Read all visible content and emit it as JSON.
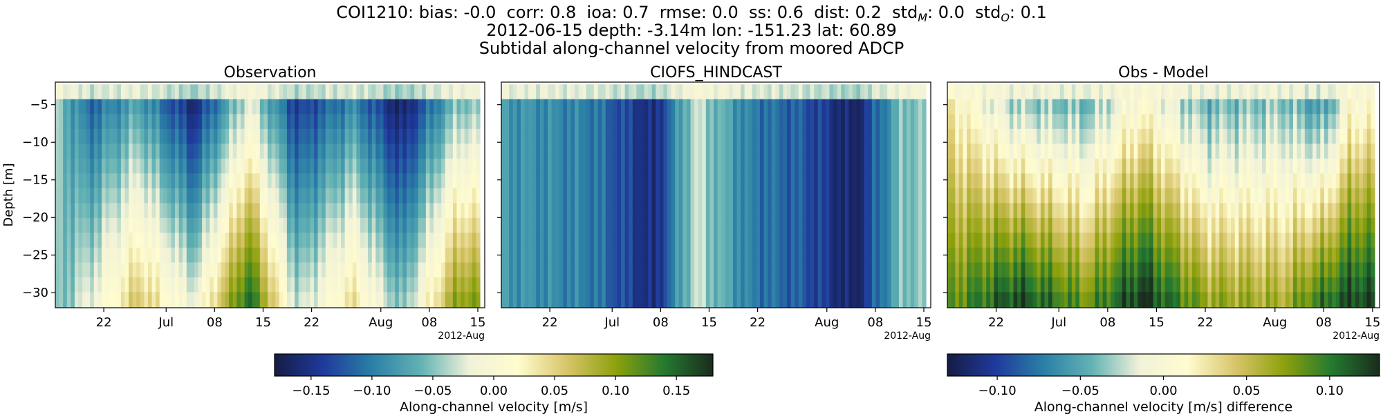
{
  "suptitle": {
    "line1_html": "COI1210: bias: -0.0 &nbsp;corr: 0.8 &nbsp;ioa: 0.7 &nbsp;rmse: 0.0 &nbsp;ss: 0.6 &nbsp;dist: 0.2 &nbsp;std<tspan font-style=\"italic\" font-size=\"16\" dy=\"5\">M</tspan><tspan dy=\"-5\">: 0.0 &nbsp;std</tspan><tspan font-style=\"italic\" font-size=\"16\" dy=\"5\">O</tspan><tspan dy=\"-5\">: 0.1</tspan>",
    "line2": "2012-06-15 depth: -3.14m lon: -151.23 lat: 60.89",
    "line3": "Subtidal along-channel velocity from moored ADCP"
  },
  "chart_data": [
    {
      "type": "heatmap",
      "title": "Observation",
      "ylabel": "Depth [m]",
      "ylim": [
        -32,
        -2
      ],
      "yticks": [
        -5,
        -10,
        -15,
        -20,
        -25,
        -30
      ],
      "xlim": [
        "2012-06-15",
        "2012-08-16"
      ],
      "xticks": [
        {
          "date": "2012-06-22",
          "label": "22"
        },
        {
          "date": "2012-07-01",
          "label": "Jul"
        },
        {
          "date": "2012-07-08",
          "label": "08"
        },
        {
          "date": "2012-07-15",
          "label": "15"
        },
        {
          "date": "2012-07-22",
          "label": "22"
        },
        {
          "date": "2012-08-01",
          "label": "Aug"
        },
        {
          "date": "2012-08-08",
          "label": "08"
        },
        {
          "date": "2012-08-15",
          "label": "15"
        }
      ],
      "offset_label": "2012-Aug",
      "colormap": "delta",
      "clim": [
        -0.18,
        0.18
      ],
      "field_m_s": [
        {
          "date": "2012-06-15",
          "surface": -0.04,
          "bottom": -0.06
        },
        {
          "date": "2012-06-20",
          "surface": -0.12,
          "bottom": -0.02
        },
        {
          "date": "2012-06-27",
          "surface": -0.08,
          "bottom": 0.06
        },
        {
          "date": "2012-07-05",
          "surface": -0.17,
          "bottom": -0.02
        },
        {
          "date": "2012-07-13",
          "surface": -0.03,
          "bottom": 0.15
        },
        {
          "date": "2012-07-20",
          "surface": -0.15,
          "bottom": -0.04
        },
        {
          "date": "2012-07-28",
          "surface": -0.1,
          "bottom": 0.04
        },
        {
          "date": "2012-08-04",
          "surface": -0.18,
          "bottom": -0.06
        },
        {
          "date": "2012-08-12",
          "surface": -0.06,
          "bottom": 0.1
        }
      ]
    },
    {
      "type": "heatmap",
      "title": "CIOFS_HINDCAST",
      "ylim": [
        -32,
        -2
      ],
      "yticks": [
        -5,
        -10,
        -15,
        -20,
        -25,
        -30
      ],
      "xlim": [
        "2012-06-15",
        "2012-08-16"
      ],
      "xticks": [
        {
          "date": "2012-06-22",
          "label": "22"
        },
        {
          "date": "2012-07-01",
          "label": "Jul"
        },
        {
          "date": "2012-07-08",
          "label": "08"
        },
        {
          "date": "2012-07-15",
          "label": "15"
        },
        {
          "date": "2012-07-22",
          "label": "22"
        },
        {
          "date": "2012-08-01",
          "label": "Aug"
        },
        {
          "date": "2012-08-08",
          "label": "08"
        },
        {
          "date": "2012-08-15",
          "label": "15"
        }
      ],
      "offset_label": "2012-Aug",
      "colormap": "delta",
      "clim": [
        -0.18,
        0.18
      ],
      "field_m_s": [
        {
          "date": "2012-06-15",
          "surface": -0.08,
          "bottom": -0.08
        },
        {
          "date": "2012-06-28",
          "surface": -0.1,
          "bottom": -0.1
        },
        {
          "date": "2012-07-07",
          "surface": -0.16,
          "bottom": -0.16
        },
        {
          "date": "2012-07-13",
          "surface": -0.03,
          "bottom": -0.03
        },
        {
          "date": "2012-07-21",
          "surface": -0.1,
          "bottom": -0.1
        },
        {
          "date": "2012-07-28",
          "surface": -0.12,
          "bottom": -0.12
        },
        {
          "date": "2012-08-05",
          "surface": -0.17,
          "bottom": -0.17
        },
        {
          "date": "2012-08-12",
          "surface": -0.05,
          "bottom": -0.05
        }
      ]
    },
    {
      "type": "heatmap",
      "title": "Obs - Model",
      "ylim": [
        -32,
        -2
      ],
      "yticks": [
        -5,
        -10,
        -15,
        -20,
        -25,
        -30
      ],
      "xlim": [
        "2012-06-15",
        "2012-08-16"
      ],
      "xticks": [
        {
          "date": "2012-06-22",
          "label": "22"
        },
        {
          "date": "2012-07-01",
          "label": "Jul"
        },
        {
          "date": "2012-07-08",
          "label": "08"
        },
        {
          "date": "2012-07-15",
          "label": "15"
        },
        {
          "date": "2012-07-22",
          "label": "22"
        },
        {
          "date": "2012-08-01",
          "label": "Aug"
        },
        {
          "date": "2012-08-08",
          "label": "08"
        },
        {
          "date": "2012-08-15",
          "label": "15"
        }
      ],
      "offset_label": "2012-Aug",
      "colormap": "delta",
      "clim": [
        -0.13,
        0.13
      ],
      "field_m_s": [
        {
          "date": "2012-06-15",
          "surface": 0.02,
          "bottom": 0.08
        },
        {
          "date": "2012-06-25",
          "surface": -0.04,
          "bottom": 0.12
        },
        {
          "date": "2012-07-05",
          "surface": -0.05,
          "bottom": 0.08
        },
        {
          "date": "2012-07-13",
          "surface": 0.0,
          "bottom": 0.13
        },
        {
          "date": "2012-07-22",
          "surface": -0.05,
          "bottom": 0.07
        },
        {
          "date": "2012-08-02",
          "surface": -0.04,
          "bottom": 0.06
        },
        {
          "date": "2012-08-08",
          "surface": -0.07,
          "bottom": 0.1
        },
        {
          "date": "2012-08-12",
          "surface": 0.0,
          "bottom": 0.12
        }
      ]
    }
  ],
  "colorbars": [
    {
      "label": "Along-channel velocity [m/s]",
      "range": [
        -0.18,
        0.18
      ],
      "ticks": [
        {
          "value": -0.15,
          "label": "−0.15"
        },
        {
          "value": -0.1,
          "label": "−0.10"
        },
        {
          "value": -0.05,
          "label": "−0.05"
        },
        {
          "value": 0.0,
          "label": "0.00"
        },
        {
          "value": 0.05,
          "label": "0.05"
        },
        {
          "value": 0.1,
          "label": "0.10"
        },
        {
          "value": 0.15,
          "label": "0.15"
        }
      ]
    },
    {
      "label": "Along-channel velocity [m/s] difference",
      "range": [
        -0.13,
        0.13
      ],
      "ticks": [
        {
          "value": -0.1,
          "label": "−0.10"
        },
        {
          "value": -0.05,
          "label": "−0.05"
        },
        {
          "value": 0.0,
          "label": "0.00"
        },
        {
          "value": 0.05,
          "label": "0.05"
        },
        {
          "value": 0.1,
          "label": "0.10"
        }
      ]
    }
  ],
  "colormap_stops": [
    "#151c44",
    "#1f3a9c",
    "#2a7fa6",
    "#62b2b4",
    "#f1f2d9",
    "#fffccf",
    "#d8c56a",
    "#8ea10c",
    "#247a30",
    "#1a2c1d"
  ]
}
